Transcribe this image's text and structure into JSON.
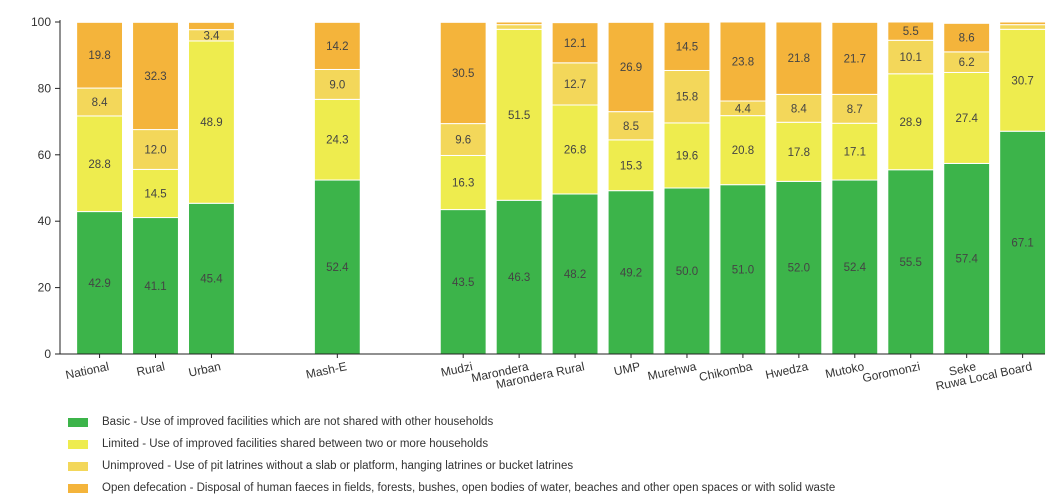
{
  "chart_data": {
    "type": "bar",
    "stacked": true,
    "categories": [
      "National",
      "Rural",
      "Urban",
      "Mash-E",
      "Mudzi",
      "Marondera",
      "Marondera Rural",
      "UMP",
      "Murehwa",
      "Chikomba",
      "Hwedza",
      "Mutoko",
      "Goromonzi",
      "Seke",
      "Ruwa Local Board"
    ],
    "group_breaks_after": [
      2,
      3
    ],
    "ylim": [
      0,
      100
    ],
    "yticks": [
      0,
      20,
      40,
      60,
      80,
      100
    ],
    "series": [
      {
        "name": "Basic - Use of improved facilities which are not shared with other households",
        "color": "#3cb44a",
        "values": [
          42.9,
          41.1,
          45.4,
          52.4,
          43.5,
          46.3,
          48.2,
          49.2,
          50.0,
          51.0,
          52.0,
          52.4,
          55.5,
          57.4,
          67.1
        ],
        "labels": [
          "42.9",
          "41.1",
          "45.4",
          "52.4",
          "43.5",
          "46.3",
          "48.2",
          "49.2",
          "50.0",
          "51.0",
          "52.0",
          "52.4",
          "55.5",
          "57.4",
          "67.1"
        ]
      },
      {
        "name": "Limited - Use of improved facilities shared between two or more households",
        "color": "#eeec4e",
        "values": [
          28.8,
          14.5,
          48.9,
          24.3,
          16.3,
          51.5,
          26.8,
          15.3,
          19.6,
          20.8,
          17.8,
          17.1,
          28.9,
          27.4,
          30.7
        ],
        "labels": [
          "28.8",
          "14.5",
          "48.9",
          "24.3",
          "16.3",
          "51.5",
          "26.8",
          "15.3",
          "19.6",
          "20.8",
          "17.8",
          "17.1",
          "28.9",
          "27.4",
          "30.7"
        ]
      },
      {
        "name": "Unimproved - Use of pit latrines without a slab or platform, hanging latrines or bucket latrines",
        "color": "#f3d75a",
        "values": [
          8.4,
          12.0,
          3.4,
          9.0,
          9.6,
          1.4,
          12.7,
          8.5,
          15.8,
          4.4,
          8.4,
          8.7,
          10.1,
          6.2,
          1.4
        ],
        "labels": [
          "8.4",
          "12.0",
          "3.4",
          "9.0",
          "9.6",
          "",
          "12.7",
          "8.5",
          "15.8",
          "4.4",
          "8.4",
          "8.7",
          "10.1",
          "6.2",
          ""
        ]
      },
      {
        "name": "Open defecation - Disposal of human faeces in fields, forests, bushes, open bodies of water, beaches and other open spaces or with solid waste",
        "color": "#f4b43b",
        "values": [
          19.8,
          32.3,
          2.2,
          14.2,
          30.5,
          0.8,
          12.1,
          26.9,
          14.5,
          23.8,
          21.8,
          21.7,
          5.5,
          8.6,
          0.8
        ],
        "labels": [
          "19.8",
          "32.3",
          "",
          "14.2",
          "30.5",
          "",
          "12.1",
          "26.9",
          "14.5",
          "23.8",
          "21.8",
          "21.7",
          "5.5",
          "8.6",
          ""
        ]
      }
    ]
  }
}
